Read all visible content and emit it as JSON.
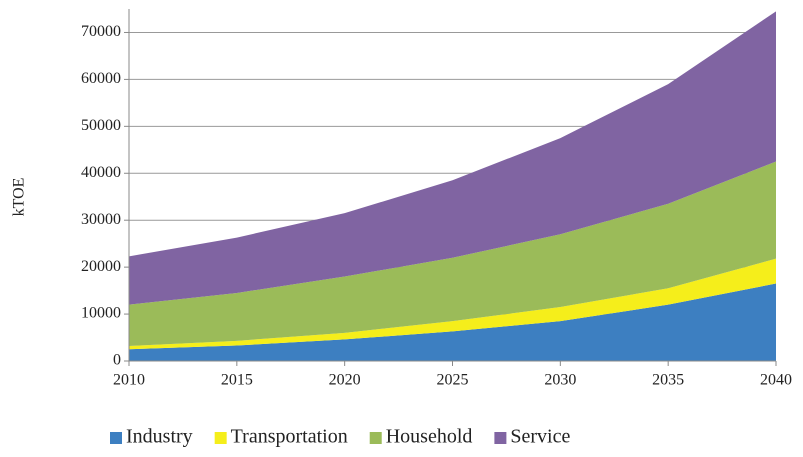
{
  "chart_data": {
    "type": "stacked_area",
    "y_label": "kTOE",
    "x": [
      2010,
      2015,
      2020,
      2025,
      2030,
      2035,
      2040
    ],
    "series": [
      {
        "name": "Industry",
        "color": "#3d7fc1",
        "values": [
          2500,
          3300,
          4600,
          6300,
          8500,
          12000,
          16500
        ]
      },
      {
        "name": "Transportation",
        "color": "#f5ee1b",
        "values": [
          700,
          1000,
          1400,
          2200,
          3000,
          3500,
          5300
        ]
      },
      {
        "name": "Household",
        "color": "#9bbb59",
        "values": [
          8800,
          10200,
          12000,
          13500,
          15500,
          18000,
          20700
        ]
      },
      {
        "name": "Service",
        "color": "#8064a2",
        "values": [
          10300,
          11800,
          13500,
          16500,
          20500,
          25500,
          32000
        ]
      }
    ],
    "xlim": [
      2010,
      2040
    ],
    "xticks": [
      2010,
      2015,
      2020,
      2025,
      2030,
      2035,
      2040
    ],
    "ylim": [
      0,
      75000
    ],
    "yticks": [
      0,
      10000,
      20000,
      30000,
      40000,
      50000,
      60000,
      70000
    ],
    "grid": true,
    "legend": "bottom"
  }
}
